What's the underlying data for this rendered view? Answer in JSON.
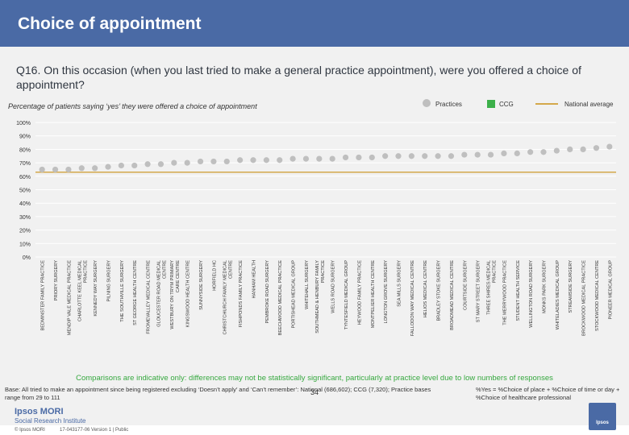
{
  "header": {
    "title": "Choice of appointment"
  },
  "question": "Q16. On this occasion (when you last tried to make a general practice appointment), were you offered a choice of appointment?",
  "subtitle": "Percentage of patients saying ‘yes’ they were offered a choice of appointment",
  "legend": {
    "practices": "Practices",
    "ccg": "CCG",
    "national": "National average"
  },
  "colors": {
    "header": "#4a6aa5",
    "practice_dot": "#bfbfbf",
    "ccg": "#3cb04a",
    "national": "#d4a84a",
    "footnote_green": "#36a83f"
  },
  "chart_data": {
    "type": "scatter",
    "title": "Percentage of patients saying ‘yes’ they were offered a choice of appointment",
    "ylim": [
      0,
      100
    ],
    "yticks": [
      "0%",
      "10%",
      "20%",
      "30%",
      "40%",
      "50%",
      "60%",
      "70%",
      "80%",
      "90%",
      "100%"
    ],
    "national_average": 63,
    "categories": [
      "BEDMINSTER FAMILY PRACTICE",
      "PRIORY SURGERY",
      "MENDIP VALE MEDICAL PRACTICE",
      "CHARLOTTE KEEL MEDICAL PRACTICE",
      "KENNEDY WAY SURGERY",
      "PILNING SURGERY",
      "THE SOUTHVILLE SURGERY",
      "ST GEORGE HEALTH CENTRE",
      "FROMEVALLEY MEDICAL CENTRE",
      "GLOUCESTER ROAD MEDICAL CENTRE",
      "WESTBURY ON TRYM PRIMARY CARE CENTRE",
      "KINGSWOOD HEALTH CENTRE",
      "SUNNYSIDE SURGERY",
      "HORFIELD HC",
      "CHRISTCHURCH FAMILY MEDICAL CENTRE",
      "FISHPONDS FAMILY PRACTICE",
      "HANHAM HEALTH",
      "PEMBROKE ROAD SURGERY",
      "BEECHWOOD MEDICAL PRACTICE",
      "PORTISHEAD MEDICAL GROUP",
      "WHITEHALL SURGERY",
      "SOUTHMEAD & HENBURY FAMILY PRACTICE",
      "WELLS ROAD SURGERY",
      "TYNTESFIELD MEDICAL GROUP",
      "HEYWOOD FAMILY PRACTICE",
      "MONTPELIER HEALTH CENTRE",
      "LONGTON GROVE SURGERY",
      "SEA MILLS SURGERY",
      "FALLODON WAY MEDICAL CENTRE",
      "HELIOS MEDICAL CENTRE",
      "BRADLEY STOKE SURGERY",
      "BROADMEAD MEDICAL CENTRE",
      "COURTSIDE SURGERY",
      "ST MARY STREET SURGERY",
      "THREE SHIRES MEDICAL PRACTICE",
      "THE MERRYWOOD PRACTICE",
      "STUDENT HEALTH SERVICE",
      "WELLINGTON ROAD SURGERY",
      "MONKS PARK SURGERY",
      "WHITELADIES MEDICAL GROUP",
      "STREAMSIDE SURGERY",
      "BROCKWOOD MEDICAL PRACTICE",
      "STOCKWOOD MEDICAL CENTRE",
      "PIONEER MEDICAL GROUP"
    ],
    "values": [
      65,
      65,
      65,
      66,
      66,
      67,
      68,
      68,
      69,
      69,
      70,
      70,
      71,
      71,
      71,
      72,
      72,
      72,
      72,
      73,
      73,
      73,
      73,
      74,
      74,
      74,
      75,
      75,
      75,
      75,
      75,
      75,
      76,
      76,
      76,
      77,
      77,
      78,
      78,
      79,
      80,
      80,
      81,
      82
    ],
    "ccg_index": null
  },
  "footer": {
    "compare_note": "Comparisons are indicative only: differences may not be statistically significant, particularly at practice level due to low numbers of responses",
    "base": "Base: All tried to make an appointment since being registered excluding ‘Doesn’t apply’ and ‘Can’t remember’: National (686,602); CCG (7,320); Practice bases range from 29 to 111",
    "formula": "%Yes = %Choice of place + %Choice of time or day + %Choice of healthcare professional",
    "page": "34",
    "brand": "Ipsos MORI",
    "brand_sub": "Social Research Institute",
    "copyright": "© Ipsos MORI",
    "version": "17-043177-06 Version 1 | Public",
    "ipsos_badge": "Ipsos"
  }
}
